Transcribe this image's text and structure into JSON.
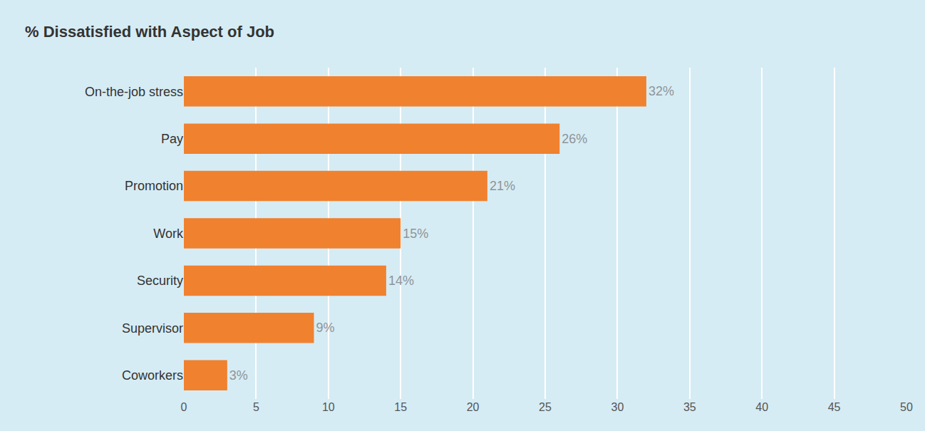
{
  "chart_data": {
    "type": "bar",
    "title": "% Dissatisfied with Aspect of Job",
    "categories": [
      "On-the-job stress",
      "Pay",
      "Promotion",
      "Work",
      "Security",
      "Supervisor",
      "Coworkers"
    ],
    "values": [
      32,
      26,
      21,
      15,
      14,
      9,
      3
    ],
    "value_labels": [
      "32%",
      "26%",
      "21%",
      "15%",
      "14%",
      "9%",
      "3%"
    ],
    "color": "#f0812f",
    "xlim": [
      0,
      50
    ],
    "xticks": [
      0,
      5,
      10,
      15,
      20,
      25,
      30,
      35,
      40,
      45,
      50
    ],
    "grid": true,
    "orientation": "horizontal",
    "data_labels": true
  }
}
